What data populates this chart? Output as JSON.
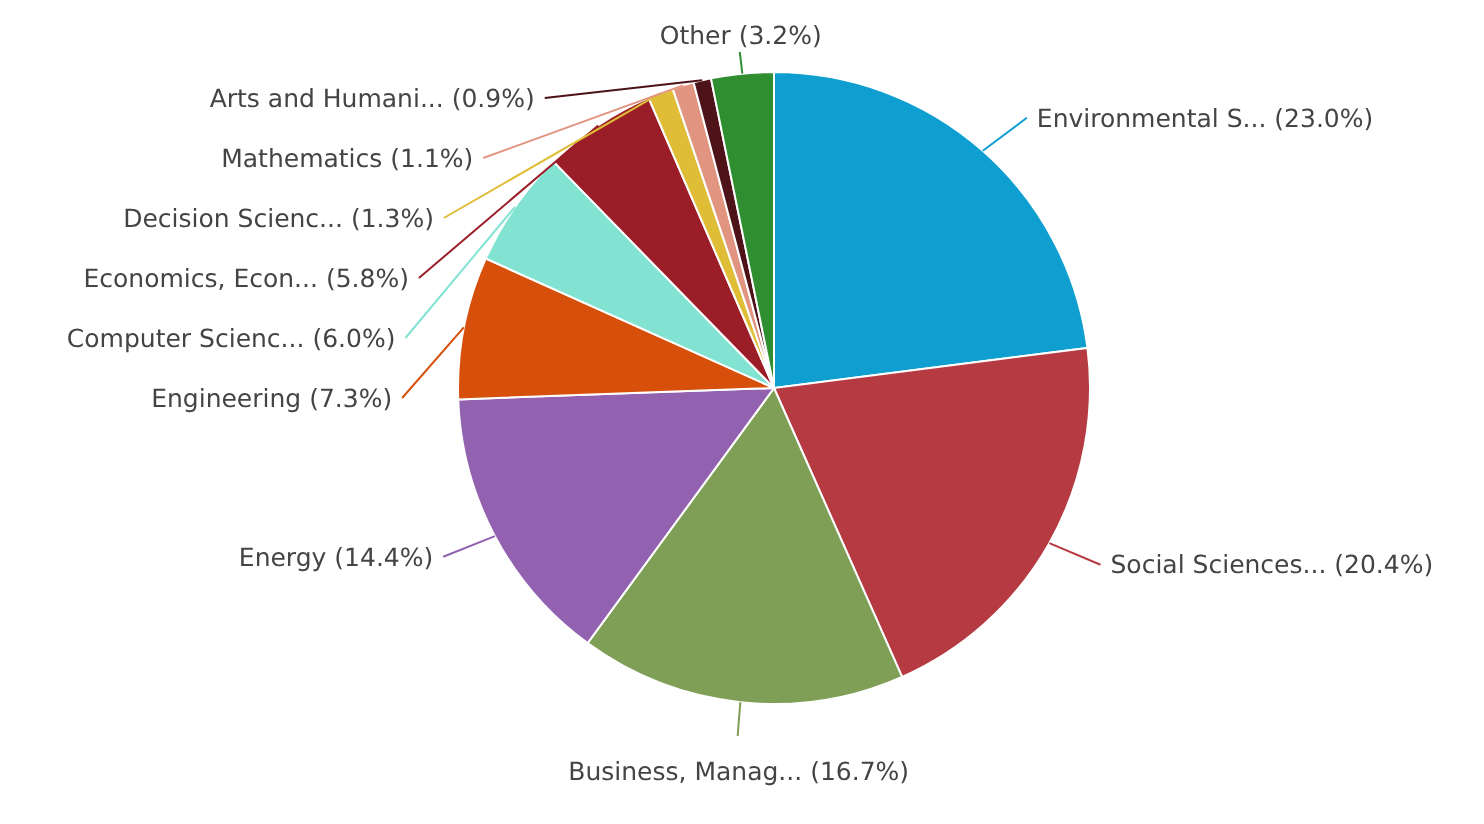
{
  "chart_data": {
    "type": "pie",
    "categories": [
      "Environmental S...",
      "Social Sciences...",
      "Business, Manag...",
      "Energy",
      "Engineering",
      "Computer Scienc...",
      "Economics, Econ...",
      "Decision Scienc...",
      "Mathematics",
      "Arts and Humani...",
      "Other"
    ],
    "values": [
      23.0,
      20.4,
      16.7,
      14.4,
      7.3,
      6.0,
      5.8,
      1.3,
      1.1,
      0.9,
      3.2
    ],
    "value_labels": [
      "(23.0%)",
      "(20.4%)",
      "(16.7%)",
      "(14.4%)",
      "(7.3%)",
      "(6.0%)",
      "(5.8%)",
      "(1.3%)",
      "(1.1%)",
      "(0.9%)",
      "(3.2%)"
    ],
    "colors": [
      "#0e9fd0",
      "#b63a42",
      "#7e9f55",
      "#9262b1",
      "#d6500c",
      "#82e3d3",
      "#9b1d28",
      "#e0bd36",
      "#e19580",
      "#4d1318",
      "#2f8e2f"
    ]
  }
}
